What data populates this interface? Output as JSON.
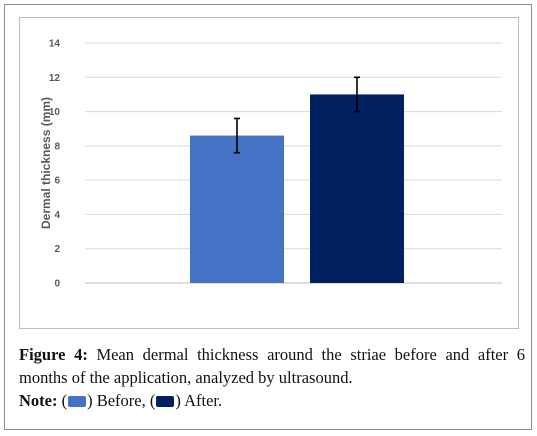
{
  "chart_data": {
    "type": "bar",
    "categories": [
      "Before",
      "After"
    ],
    "values": [
      8.6,
      11.0
    ],
    "error": [
      1.0,
      1.0
    ],
    "ylabel": "Dermal thickness (mm)",
    "xlabel": "",
    "ylim": [
      0,
      14
    ],
    "yticks": [
      "0",
      "2",
      "4",
      "6",
      "8",
      "10",
      "12",
      "14"
    ],
    "grid": true,
    "colors": [
      "#4472c4",
      "#002060"
    ]
  },
  "caption": {
    "figure_label": "Figure 4:",
    "text": "Mean dermal thickness around the striae before and after 6 months of the application, analyzed by ultrasound.",
    "note_label": "Note:",
    "open_paren": "(",
    "before_text": ") Before, (",
    "after_text": ") After."
  }
}
